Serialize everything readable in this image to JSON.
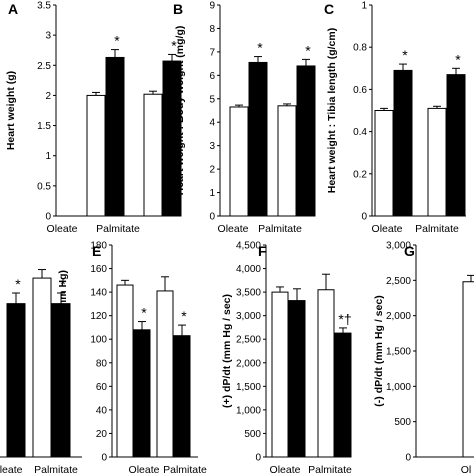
{
  "figure": {
    "background": "#ffffff",
    "bar_fill_open": "#ffffff",
    "bar_fill_closed": "#000000",
    "stroke": "#000000"
  },
  "chart_data": [
    {
      "panel": "A",
      "type": "bar",
      "ylabel": "Heart weight (g)",
      "categories": [
        "Oleate",
        "Palmitate"
      ],
      "series": [
        {
          "fill": "open",
          "values": [
            2.0,
            2.02
          ],
          "errors": [
            0.05,
            0.05
          ]
        },
        {
          "fill": "closed",
          "values": [
            2.63,
            2.57
          ],
          "errors": [
            0.13,
            0.11
          ]
        }
      ],
      "ylim": [
        0,
        3.5
      ],
      "yticks": [
        "0",
        "0.5",
        "1",
        "1.5",
        "2",
        "2.5",
        "3",
        "3.5"
      ],
      "marks": [
        {
          "series": 1,
          "category": 0,
          "text": "*"
        },
        {
          "series": 1,
          "category": 1,
          "text": "*"
        }
      ]
    },
    {
      "panel": "B",
      "type": "bar",
      "ylabel": "Heart weight : Body weight (mg/g)",
      "categories": [
        "Oleate",
        "Palmitate"
      ],
      "series": [
        {
          "fill": "open",
          "values": [
            4.65,
            4.7
          ],
          "errors": [
            0.08,
            0.08
          ]
        },
        {
          "fill": "closed",
          "values": [
            6.55,
            6.4
          ],
          "errors": [
            0.25,
            0.28
          ]
        }
      ],
      "ylim": [
        0,
        9
      ],
      "yticks": [
        "0",
        "1",
        "2",
        "3",
        "4",
        "5",
        "6",
        "7",
        "8",
        "9"
      ],
      "marks": [
        {
          "series": 1,
          "category": 0,
          "text": "*"
        },
        {
          "series": 1,
          "category": 1,
          "text": "*"
        }
      ]
    },
    {
      "panel": "C",
      "type": "bar",
      "ylabel": "Heart weight : Tibia length (g/cm)",
      "categories": [
        "Oleate",
        "Palmitate"
      ],
      "series": [
        {
          "fill": "open",
          "values": [
            0.5,
            0.51
          ],
          "errors": [
            0.01,
            0.01
          ]
        },
        {
          "fill": "closed",
          "values": [
            0.69,
            0.67
          ],
          "errors": [
            0.03,
            0.03
          ]
        }
      ],
      "ylim": [
        0,
        1
      ],
      "yticks": [
        "0",
        "0.2",
        "0.4",
        "0.6",
        "0.8",
        "1"
      ],
      "marks": [
        {
          "series": 1,
          "category": 0,
          "text": "*"
        },
        {
          "series": 1,
          "category": 1,
          "text": "*"
        }
      ]
    },
    {
      "panel": "",
      "type": "bar",
      "ylabel": "",
      "categories": [
        "Oleate",
        "Palmitate"
      ],
      "series": [
        {
          "fill": "open",
          "values": [
            null,
            0.84
          ],
          "errors": [
            null,
            0.04
          ]
        },
        {
          "fill": "closed",
          "values": [
            0.72,
            0.72
          ],
          "errors": [
            0.05,
            0.05
          ]
        }
      ],
      "ylim": [
        0,
        1
      ],
      "yticks": [],
      "marks": [
        {
          "series": 1,
          "category": 0,
          "text": "*"
        },
        {
          "series": 1,
          "category": 1,
          "text": "*"
        }
      ]
    },
    {
      "panel": "E",
      "type": "bar",
      "ylabel": "LV Developed Pressure (mm Hg)",
      "categories": [
        "Oleate",
        "Palmitate"
      ],
      "series": [
        {
          "fill": "open",
          "values": [
            146,
            141
          ],
          "errors": [
            4,
            12
          ]
        },
        {
          "fill": "closed",
          "values": [
            108,
            103
          ],
          "errors": [
            7,
            9
          ]
        }
      ],
      "ylim": [
        0,
        180
      ],
      "yticks": [
        "0",
        "20",
        "40",
        "60",
        "80",
        "100",
        "120",
        "140",
        "160",
        "180"
      ],
      "marks": [
        {
          "series": 1,
          "category": 0,
          "text": "*"
        },
        {
          "series": 1,
          "category": 1,
          "text": "*"
        }
      ]
    },
    {
      "panel": "F",
      "type": "bar",
      "ylabel": "(+) dP/dt (mm Hg / sec)",
      "categories": [
        "Oleate",
        "Palmitate"
      ],
      "series": [
        {
          "fill": "open",
          "values": [
            3500,
            3550
          ],
          "errors": [
            110,
            330
          ]
        },
        {
          "fill": "closed",
          "values": [
            3320,
            2630
          ],
          "errors": [
            250,
            110
          ]
        }
      ],
      "ylim": [
        0,
        4500
      ],
      "yticks": [
        "0",
        "500",
        "1,000",
        "1,500",
        "2,000",
        "2,500",
        "3,000",
        "3,500",
        "4,000",
        "4,500"
      ],
      "marks": [
        {
          "series": 1,
          "category": 0,
          "text": ""
        },
        {
          "series": 1,
          "category": 1,
          "text": "*†"
        }
      ]
    },
    {
      "panel": "G",
      "type": "bar",
      "ylabel": "(-) dP/dt (mm Hg / sec)",
      "categories": [
        "Ol"
      ],
      "series": [
        {
          "fill": "open",
          "values": [
            2480
          ],
          "errors": [
            90
          ]
        }
      ],
      "ylim": [
        0,
        3000
      ],
      "yticks": [
        "0",
        "500",
        "1,000",
        "1,500",
        "2,000",
        "2,500",
        "3,000"
      ],
      "marks": []
    }
  ]
}
